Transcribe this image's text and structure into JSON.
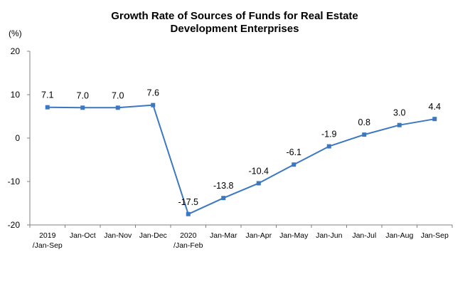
{
  "chart_data": {
    "type": "line",
    "title_lines": [
      "Growth Rate of Sources of Funds for Real Estate",
      "Development Enterprises"
    ],
    "ylabel": "(%)",
    "xlabel": "",
    "ylim": [
      -20,
      20
    ],
    "yticks": [
      20,
      10,
      0,
      -10,
      -20
    ],
    "categories": [
      [
        "2019",
        "/Jan-Sep"
      ],
      [
        "Jan-Oct"
      ],
      [
        "Jan-Nov"
      ],
      [
        "Jan-Dec"
      ],
      [
        "2020",
        "/Jan-Feb"
      ],
      [
        "Jan-Mar"
      ],
      [
        "Jan-Apr"
      ],
      [
        "Jan-May"
      ],
      [
        "Jan-Jun"
      ],
      [
        "Jan-Jul"
      ],
      [
        "Jan-Aug"
      ],
      [
        "Jan-Sep"
      ]
    ],
    "values": [
      7.1,
      7.0,
      7.0,
      7.6,
      -17.5,
      -13.8,
      -10.4,
      -6.1,
      -1.9,
      0.8,
      3.0,
      4.4
    ],
    "labels": [
      "7.1",
      "7.0",
      "7.0",
      "7.6",
      "-17.5",
      "-13.8",
      "-10.4",
      "-6.1",
      "-1.9",
      "0.8",
      "3.0",
      "4.4"
    ],
    "line_color": "#3c78c0",
    "grid": false
  }
}
